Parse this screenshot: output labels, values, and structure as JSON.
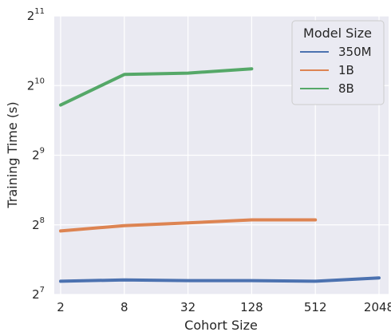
{
  "chart_data": {
    "type": "line",
    "xlabel": "Cohort Size",
    "ylabel": "Training Time (s)",
    "x_scale": "log2",
    "y_scale": "log2",
    "x_ticks": [
      {
        "value": 2,
        "label": "2"
      },
      {
        "value": 8,
        "label": "8"
      },
      {
        "value": 32,
        "label": "32"
      },
      {
        "value": 128,
        "label": "128"
      },
      {
        "value": 512,
        "label": "512"
      },
      {
        "value": 2048,
        "label": "2048"
      }
    ],
    "y_ticks": [
      {
        "value": 128,
        "base": "2",
        "exp": "7"
      },
      {
        "value": 256,
        "base": "2",
        "exp": "8"
      },
      {
        "value": 512,
        "base": "2",
        "exp": "9"
      },
      {
        "value": 1024,
        "base": "2",
        "exp": "10"
      },
      {
        "value": 2048,
        "base": "2",
        "exp": "11"
      }
    ],
    "ylim": [
      128,
      2048
    ],
    "xlim_exp2": [
      0.8,
      11.3
    ],
    "grid": true,
    "legend": {
      "title": "Model Size",
      "position": "top-right"
    },
    "series": [
      {
        "name": "350M",
        "color": "#4c72b0",
        "x": [
          2,
          8,
          32,
          128,
          512,
          2048
        ],
        "y": [
          146,
          148,
          147,
          147,
          146,
          151
        ]
      },
      {
        "name": "1B",
        "color": "#dd8452",
        "x": [
          2,
          8,
          32,
          128,
          512
        ],
        "y": [
          241,
          254,
          261,
          269,
          269
        ]
      },
      {
        "name": "8B",
        "color": "#55a868",
        "x": [
          2,
          8,
          32,
          128
        ],
        "y": [
          844,
          1144,
          1160,
          1210
        ]
      }
    ]
  }
}
